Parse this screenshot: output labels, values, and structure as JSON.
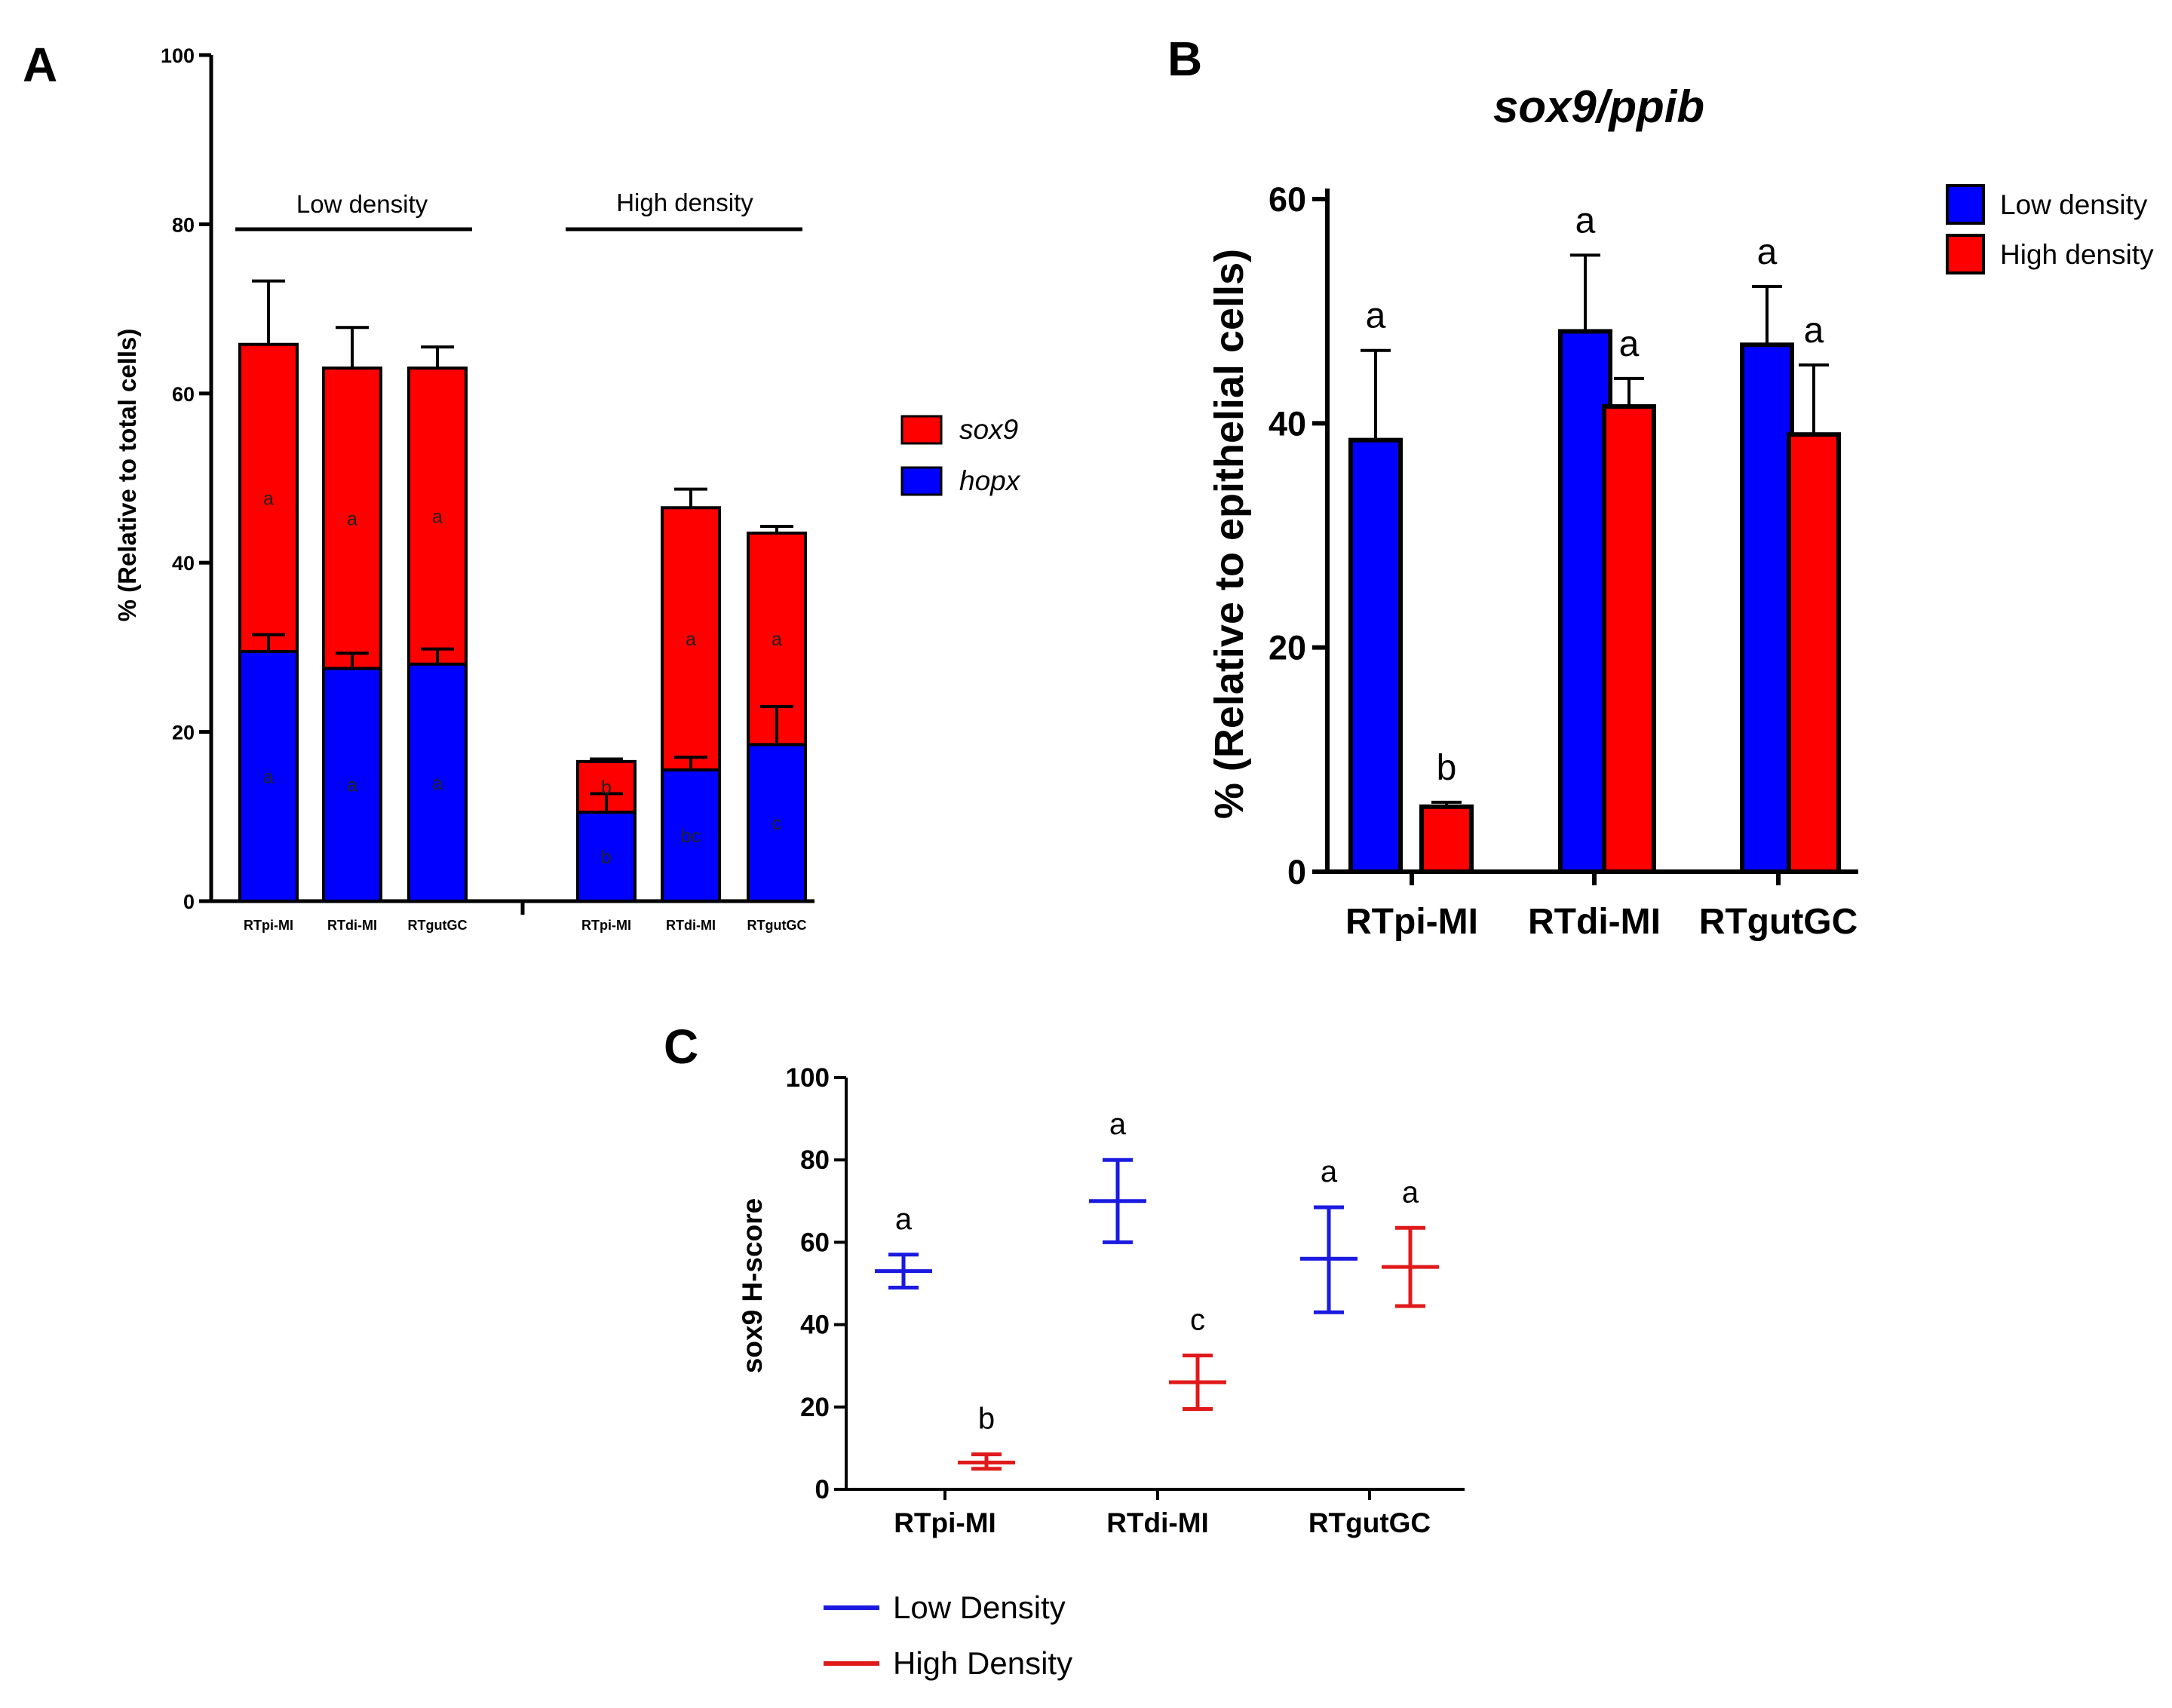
{
  "panel_labels": {
    "a": "A",
    "b": "B",
    "c": "C"
  },
  "colors": {
    "low": "#0000ff",
    "high": "#ff0000",
    "lowC": "#1a1ae0",
    "highC": "#e01a1a"
  },
  "chart_data": [
    {
      "panel": "A",
      "type": "bar",
      "stacked": true,
      "ylabel": "% (Relative to total cells)",
      "ylim": [
        0,
        100
      ],
      "yticks": [
        0,
        20,
        40,
        60,
        80,
        100
      ],
      "groups": [
        {
          "name": "Low density",
          "categories": [
            "RTpi-MI",
            "RTdi-MI",
            "RTgutGC"
          ]
        },
        {
          "name": "High density",
          "categories": [
            "RTpi-MI",
            "RTdi-MI",
            "RTgutGC"
          ]
        }
      ],
      "legend": [
        {
          "label": "sox9",
          "color": "#ff0000"
        },
        {
          "label": "hopx",
          "color": "#0000ff"
        }
      ],
      "series": [
        {
          "name": "hopx",
          "values": [
            29.5,
            27.5,
            28,
            10.5,
            15.5,
            18.5
          ],
          "errors": [
            2,
            1.8,
            1.8,
            2.2,
            1.5,
            4.5
          ],
          "letters": [
            "a",
            "a",
            "a",
            "b",
            "bc",
            "c"
          ]
        },
        {
          "name": "sox9",
          "values": [
            36.3,
            35.5,
            35,
            6,
            31,
            25
          ],
          "errors": [
            7.5,
            4.8,
            2.5,
            0.3,
            2.2,
            0.8
          ],
          "letters": [
            "a",
            "a",
            "a",
            "b",
            "a",
            "a"
          ]
        }
      ]
    },
    {
      "panel": "B",
      "type": "bar",
      "title": "sox9/ppib",
      "ylabel": "% (Relative to epithelial cells)",
      "ylim": [
        0,
        60
      ],
      "yticks": [
        0,
        20,
        40,
        60
      ],
      "categories": [
        "RTpi-MI",
        "RTdi-MI",
        "RTgutGC"
      ],
      "legend": [
        {
          "label": "Low density",
          "color": "#0000ff"
        },
        {
          "label": "High density",
          "color": "#ff0000"
        }
      ],
      "series": [
        {
          "name": "Low density",
          "values": [
            38.5,
            48.2,
            47
          ],
          "errors": [
            8,
            6.8,
            5.2
          ],
          "letters": [
            "a",
            "a",
            "a"
          ]
        },
        {
          "name": "High density",
          "values": [
            5.8,
            41.5,
            39
          ],
          "errors": [
            0.4,
            2.5,
            6.2
          ],
          "letters": [
            "b",
            "a",
            "a"
          ]
        }
      ]
    },
    {
      "panel": "C",
      "type": "scatter",
      "ylabel": "sox9 H-score",
      "ylim": [
        0,
        100
      ],
      "yticks": [
        0,
        20,
        40,
        60,
        80,
        100
      ],
      "categories": [
        "RTpi-MI",
        "RTdi-MI",
        "RTgutGC"
      ],
      "legend": [
        {
          "label": "Low Density",
          "color": "#1a1ae0"
        },
        {
          "label": "High Density",
          "color": "#e01a1a"
        }
      ],
      "series": [
        {
          "name": "Low Density",
          "mean": [
            53,
            70,
            56
          ],
          "low": [
            49,
            60,
            43
          ],
          "high": [
            57,
            80,
            68.5
          ],
          "letters": [
            "a",
            "a",
            "a"
          ]
        },
        {
          "name": "High Density",
          "mean": [
            6.5,
            26,
            54
          ],
          "low": [
            5,
            19.5,
            44.5
          ],
          "high": [
            8.5,
            32.5,
            63.5
          ],
          "letters": [
            "b",
            "c",
            "a"
          ]
        }
      ]
    }
  ]
}
